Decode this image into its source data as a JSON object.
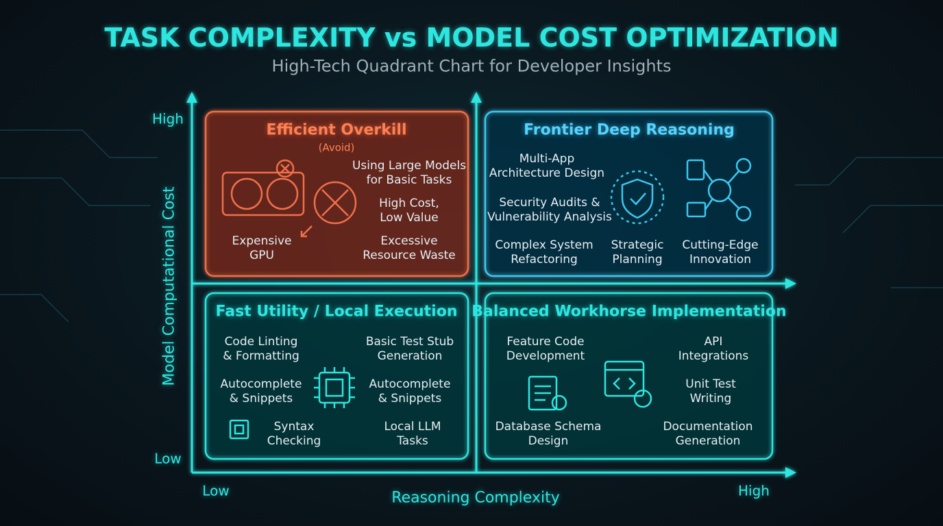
{
  "header": {
    "title": "TASK COMPLEXITY vs MODEL COST OPTIMIZATION",
    "subtitle": "High-Tech Quadrant Chart for Developer Insights"
  },
  "axes": {
    "y": {
      "label": "Model Computational Cost",
      "high": "High",
      "low": "Low"
    },
    "x": {
      "label": "Reasoning Complexity",
      "low": "Low",
      "high": "High"
    }
  },
  "quadrants": [
    {
      "title": "Efficient Overkill",
      "note": "(Avoid)",
      "items": [
        "Using Large Models\nfor Basic Tasks",
        "High Cost,\nLow Value",
        "Expensive\nGPU",
        "Excessive\nResource Waste"
      ]
    },
    {
      "title": "Frontier Deep Reasoning",
      "items": [
        "Multi-App\nArchitecture Design",
        "Security Audits &\nVulnerability Analysis",
        "Complex System\nRefactoring",
        "Strategic\nPlanning",
        "Cutting-Edge\nInnovation"
      ]
    },
    {
      "title": "Fast Utility / Local Execution",
      "items": [
        "Code Linting\n& Formatting",
        "Basic Test Stub\nGeneration",
        "Autocomplete\n& Snippets",
        "Autocomplete\n& Snippets",
        "Syntax\nChecking",
        "Local LLM\nTasks"
      ]
    },
    {
      "title": "Balanced Workhorse Implementation",
      "items": [
        "Feature Code\nDevelopment",
        "API\nIntegrations",
        "Unit Test\nWriting",
        "Database Schema\nDesign",
        "Documentation\nGeneration"
      ]
    }
  ]
}
